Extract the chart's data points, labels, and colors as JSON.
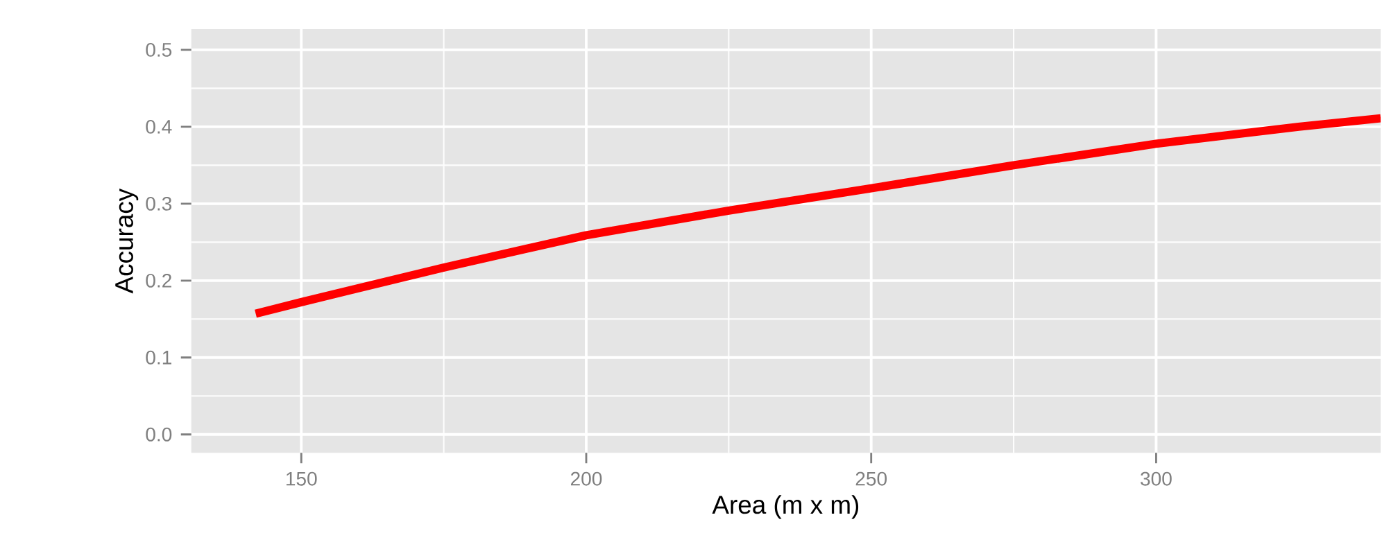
{
  "chart_data": {
    "type": "line",
    "xlabel": "Area (m x m)",
    "ylabel": "Accuracy",
    "x": [
      142,
      150,
      175,
      200,
      225,
      250,
      275,
      300,
      325,
      339.4
    ],
    "series": [
      {
        "color": "#ff0000",
        "values": [
          0.157,
          0.172,
          0.217,
          0.259,
          0.291,
          0.32,
          0.35,
          0.378,
          0.4,
          0.411
        ]
      }
    ],
    "xlim": [
      130.7,
      339.4
    ],
    "ylim": [
      -0.024,
      0.527
    ],
    "xticks": [
      150,
      200,
      250,
      300
    ],
    "yticks": [
      {
        "value": 0,
        "label": "0.0"
      },
      0.1,
      0.2,
      0.3,
      0.4,
      0.5
    ],
    "grid": true
  }
}
